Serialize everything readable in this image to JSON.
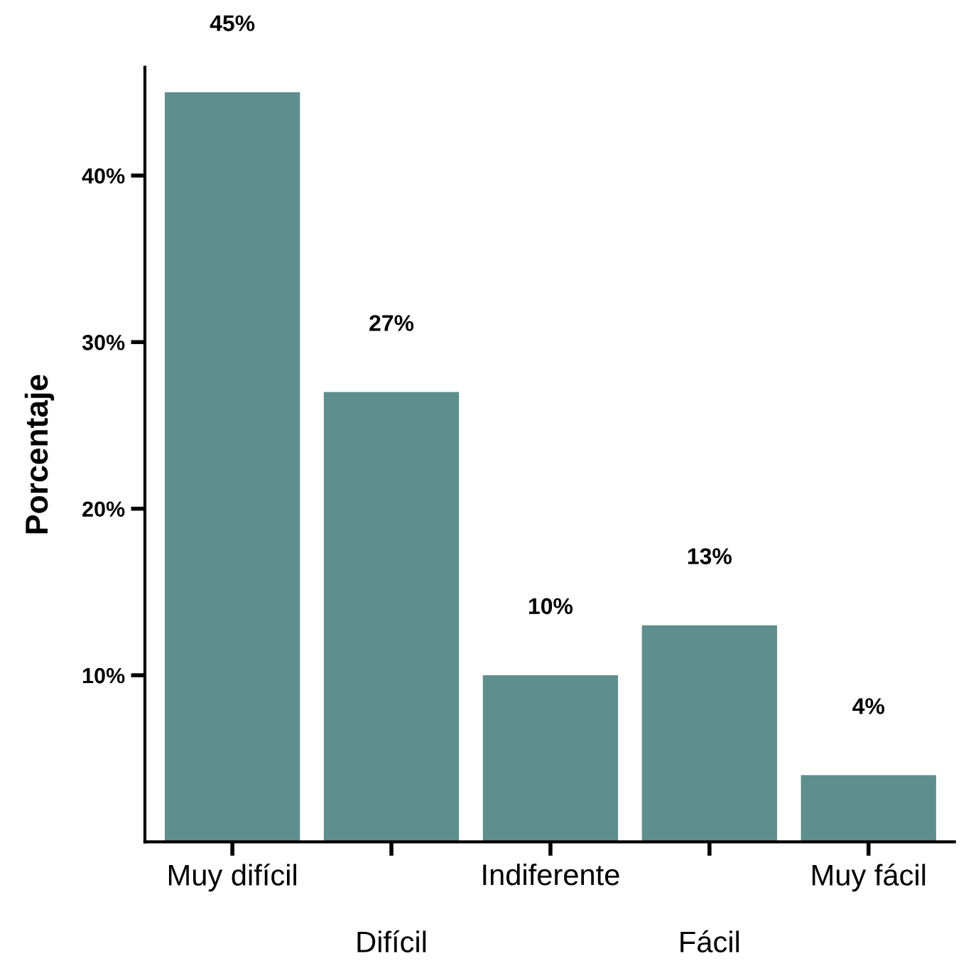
{
  "chart_data": {
    "type": "bar",
    "ylabel": "Porcentaje",
    "categories": [
      "Muy difícil",
      "Difícil",
      "Indiferente",
      "Fácil",
      "Muy fácil"
    ],
    "values": [
      45,
      27,
      10,
      13,
      4
    ],
    "value_labels": [
      "45%",
      "27%",
      "10%",
      "13%",
      "4%"
    ],
    "color": "#5f8e8d",
    "ylim": [
      0,
      46.5
    ],
    "yticks": [
      {
        "value": 10,
        "label": "10%"
      },
      {
        "value": 20,
        "label": "20%"
      },
      {
        "value": 30,
        "label": "30%"
      },
      {
        "value": 40,
        "label": "40%"
      }
    ],
    "grid": false
  }
}
